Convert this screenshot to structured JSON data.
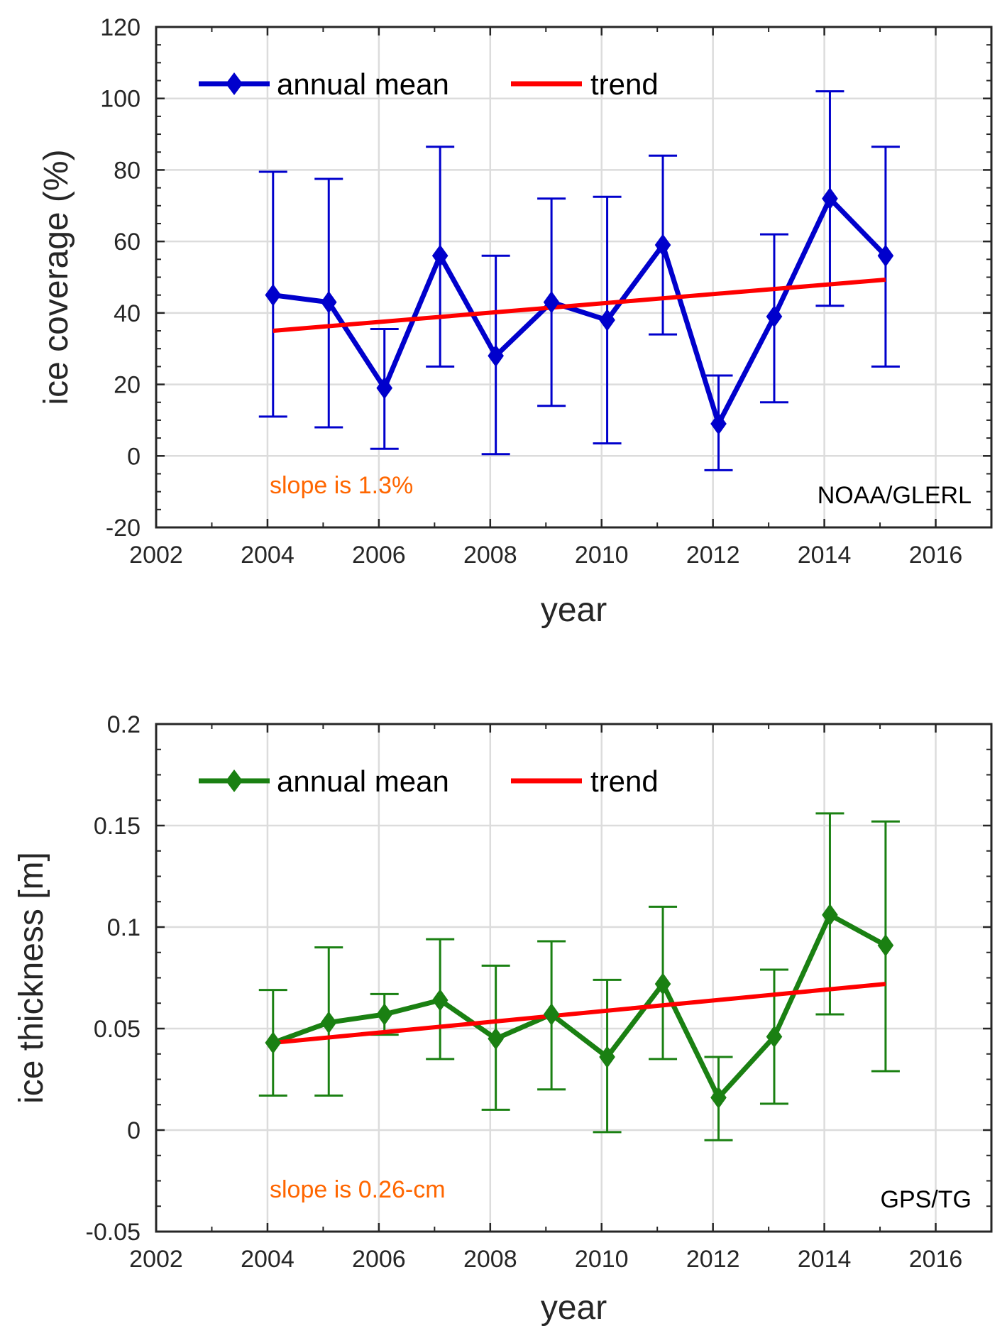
{
  "chart_data": [
    {
      "type": "line",
      "xlabel": "year",
      "ylabel": "ice coverage (%)",
      "xlim": [
        2002,
        2017
      ],
      "ylim": [
        -20,
        120
      ],
      "xticks": [
        2002,
        2004,
        2006,
        2008,
        2010,
        2012,
        2014,
        2016
      ],
      "yticks": [
        -20,
        0,
        20,
        40,
        60,
        80,
        100,
        120
      ],
      "xtick_labels": [
        "2002",
        "2004",
        "2006",
        "2008",
        "2010",
        "2012",
        "2014",
        "2016"
      ],
      "ytick_labels": [
        "-20",
        "0",
        "20",
        "40",
        "60",
        "80",
        "100",
        "120"
      ],
      "grid": true,
      "legend_position": "top-left",
      "series": [
        {
          "name": "annual mean",
          "color": "#0000cc",
          "marker": "diamond",
          "x": [
            2004.1,
            2005.1,
            2006.1,
            2007.1,
            2008.1,
            2009.1,
            2010.1,
            2011.1,
            2012.1,
            2013.1,
            2014.1,
            2015.1
          ],
          "y": [
            45,
            43,
            19,
            56,
            28,
            43,
            38,
            59,
            9,
            39,
            72,
            56
          ],
          "err_low": [
            11,
            8,
            2,
            25,
            0.5,
            14,
            3.5,
            34,
            -4,
            15,
            42,
            25
          ],
          "err_high": [
            79.5,
            77.5,
            35.5,
            86.5,
            56,
            72,
            72.5,
            84,
            22.5,
            62,
            102,
            86.5
          ]
        },
        {
          "name": "trend",
          "color": "#ff0000",
          "x": [
            2004.1,
            2015.1
          ],
          "y": [
            35,
            49.3
          ]
        }
      ],
      "annotation": "slope is 1.3%",
      "annotation_color": "#ff6600",
      "source_label": "NOAA/GLERL"
    },
    {
      "type": "line",
      "xlabel": "year",
      "ylabel": "ice thickness [m]",
      "xlim": [
        2002,
        2017
      ],
      "ylim": [
        -0.05,
        0.2
      ],
      "xticks": [
        2002,
        2004,
        2006,
        2008,
        2010,
        2012,
        2014,
        2016
      ],
      "yticks": [
        -0.05,
        0,
        0.05,
        0.1,
        0.15,
        0.2
      ],
      "xtick_labels": [
        "2002",
        "2004",
        "2006",
        "2008",
        "2010",
        "2012",
        "2014",
        "2016"
      ],
      "ytick_labels": [
        "-0.05",
        "0",
        "0.05",
        "0.1",
        "0.15",
        "0.2"
      ],
      "grid": true,
      "legend_position": "top-left",
      "series": [
        {
          "name": "annual mean",
          "color": "#1a8012",
          "marker": "diamond",
          "x": [
            2004.1,
            2005.1,
            2006.1,
            2007.1,
            2008.1,
            2009.1,
            2010.1,
            2011.1,
            2012.1,
            2013.1,
            2014.1,
            2015.1
          ],
          "y": [
            0.043,
            0.053,
            0.057,
            0.064,
            0.045,
            0.057,
            0.036,
            0.072,
            0.016,
            0.046,
            0.106,
            0.091
          ],
          "err_low": [
            0.017,
            0.017,
            0.047,
            0.035,
            0.01,
            0.02,
            -0.001,
            0.035,
            -0.005,
            0.013,
            0.057,
            0.029
          ],
          "err_high": [
            0.069,
            0.09,
            0.067,
            0.094,
            0.081,
            0.093,
            0.074,
            0.11,
            0.036,
            0.079,
            0.156,
            0.152
          ]
        },
        {
          "name": "trend",
          "color": "#ff0000",
          "x": [
            2004.1,
            2015.1
          ],
          "y": [
            0.043,
            0.072
          ]
        }
      ],
      "annotation": "slope is 0.26-cm",
      "annotation_color": "#ff6600",
      "source_label": "GPS/TG"
    }
  ]
}
